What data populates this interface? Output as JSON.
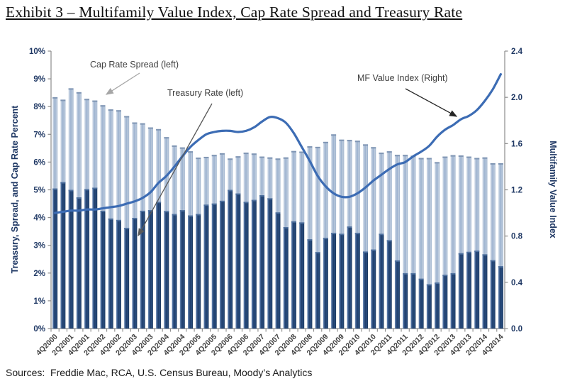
{
  "title": "Exhibit 3 – Multifamily Value Index, Cap Rate Spread and Treasury Rate",
  "sources": "Sources:  Freddie Mac, RCA, U.S. Census Bureau, Moody’s Analytics",
  "annotations": {
    "cap_rate_spread": "Cap Rate Spread (left)",
    "treasury_rate": "Treasury Rate (left)",
    "mf_value_index": "MF Value Index (Right)"
  },
  "colors": {
    "treasury_bar": "#1F3E6B",
    "cap_spread_bar": "#9CB2CF",
    "line": "#3C6CB4",
    "axis": "#8C8C8C",
    "y_tick_label": "#1F3864",
    "x_tick_label": "#404040",
    "annotation_text": "#3F3F3F"
  },
  "chart_data": {
    "type": "combo-stacked-bar-line",
    "title": "Exhibit 3 – Multifamily Value Index, Cap Rate Spread and Treasury Rate",
    "grid": "off",
    "legend_position": "none (in-chart annotations with arrows)",
    "categories": [
      "4Q2000",
      "1Q2001",
      "2Q2001",
      "3Q2001",
      "4Q2001",
      "1Q2002",
      "2Q2002",
      "3Q2002",
      "4Q2002",
      "1Q2003",
      "2Q2003",
      "3Q2003",
      "4Q2003",
      "1Q2004",
      "2Q2004",
      "3Q2004",
      "4Q2004",
      "1Q2005",
      "2Q2005",
      "3Q2005",
      "4Q2005",
      "1Q2006",
      "2Q2006",
      "3Q2006",
      "4Q2006",
      "1Q2007",
      "2Q2007",
      "3Q2007",
      "4Q2007",
      "1Q2008",
      "2Q2008",
      "3Q2008",
      "4Q2008",
      "1Q2009",
      "2Q2009",
      "3Q2009",
      "4Q2009",
      "1Q2010",
      "2Q2010",
      "3Q2010",
      "4Q2010",
      "1Q2011",
      "2Q2011",
      "3Q2011",
      "4Q2011",
      "1Q2012",
      "2Q2012",
      "3Q2012",
      "4Q2012",
      "1Q2013",
      "2Q2013",
      "3Q2013",
      "4Q2013",
      "1Q2014",
      "2Q2014",
      "3Q2014",
      "4Q2014"
    ],
    "x_tick_labels": [
      "4Q2000",
      "2Q2001",
      "4Q2001",
      "2Q2002",
      "4Q2002",
      "2Q2003",
      "4Q2003",
      "2Q2004",
      "4Q2004",
      "2Q2005",
      "4Q2005",
      "2Q2006",
      "4Q2006",
      "2Q2007",
      "4Q2007",
      "2Q2008",
      "4Q2008",
      "2Q2009",
      "4Q2009",
      "2Q2010",
      "4Q2010",
      "2Q2011",
      "4Q2011",
      "2Q2012",
      "4Q2012",
      "2Q2013",
      "4Q2013",
      "2Q2014",
      "4Q2014"
    ],
    "series": [
      {
        "name": "Treasury Rate",
        "type": "bar",
        "stack": "rates",
        "axis": "left",
        "unit": "%",
        "values": [
          5.05,
          5.28,
          5.0,
          4.73,
          5.03,
          5.08,
          4.25,
          3.97,
          3.92,
          3.63,
          3.99,
          4.25,
          4.27,
          4.57,
          4.24,
          4.13,
          4.27,
          4.08,
          4.13,
          4.47,
          4.51,
          4.61,
          5.0,
          4.87,
          4.57,
          4.64,
          4.81,
          4.7,
          4.19,
          3.66,
          3.87,
          3.83,
          3.22,
          2.76,
          3.27,
          3.45,
          3.42,
          3.68,
          3.45,
          2.78,
          2.85,
          3.42,
          3.19,
          2.46,
          2.0,
          2.0,
          1.8,
          1.6,
          1.66,
          1.94,
          2.0,
          2.72,
          2.77,
          2.81,
          2.68,
          2.47,
          2.25
        ]
      },
      {
        "name": "Cap Rate Spread",
        "type": "bar",
        "stack": "rates",
        "axis": "left",
        "unit": "%",
        "values": [
          3.29,
          2.97,
          3.66,
          3.79,
          3.25,
          3.14,
          3.8,
          3.93,
          3.95,
          4.03,
          3.44,
          3.15,
          2.98,
          2.62,
          2.66,
          2.47,
          2.26,
          2.31,
          2.03,
          1.72,
          1.75,
          1.71,
          1.13,
          1.34,
          1.77,
          1.67,
          1.39,
          1.47,
          1.94,
          2.51,
          2.53,
          2.55,
          3.35,
          3.79,
          3.46,
          3.55,
          3.39,
          3.12,
          3.32,
          3.86,
          3.69,
          2.92,
          3.2,
          3.8,
          4.26,
          4.23,
          4.35,
          4.55,
          4.34,
          4.26,
          4.25,
          3.52,
          3.43,
          3.34,
          3.49,
          3.49,
          3.71
        ]
      },
      {
        "name": "MF Value Index",
        "type": "line",
        "axis": "right",
        "values": [
          1.0,
          1.01,
          1.02,
          1.02,
          1.03,
          1.03,
          1.04,
          1.05,
          1.06,
          1.08,
          1.1,
          1.13,
          1.18,
          1.26,
          1.32,
          1.4,
          1.49,
          1.57,
          1.63,
          1.68,
          1.7,
          1.71,
          1.71,
          1.7,
          1.71,
          1.74,
          1.79,
          1.83,
          1.82,
          1.78,
          1.69,
          1.57,
          1.45,
          1.32,
          1.23,
          1.17,
          1.14,
          1.14,
          1.17,
          1.22,
          1.28,
          1.33,
          1.38,
          1.42,
          1.44,
          1.49,
          1.53,
          1.58,
          1.66,
          1.72,
          1.76,
          1.81,
          1.84,
          1.89,
          1.97,
          2.07,
          2.2
        ]
      }
    ],
    "left_axis": {
      "label": "Treasury, Spread, and Cap Rate Percent",
      "min": 0,
      "max": 10,
      "step": 1,
      "ticks": [
        "0%",
        "1%",
        "2%",
        "3%",
        "4%",
        "5%",
        "6%",
        "7%",
        "8%",
        "9%",
        "10%"
      ]
    },
    "right_axis": {
      "label": "Multifamily Value Index",
      "min": 0,
      "max": 2.4,
      "step": 0.4,
      "ticks": [
        "0.0",
        "0.4",
        "0.8",
        "1.2",
        "1.6",
        "2.0",
        "2.4"
      ]
    }
  }
}
